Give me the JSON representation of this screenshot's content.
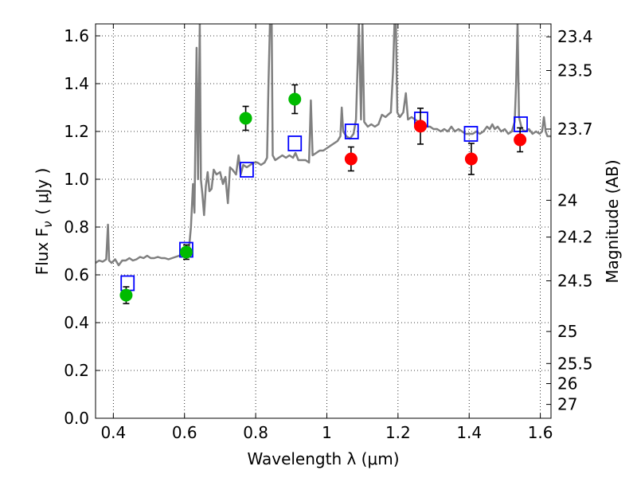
{
  "chart_data": {
    "type": "scatter",
    "xlabel": "Wavelength  λ (μm)",
    "ylabel": "Flux  F",
    "ylabel_subscript": "ν",
    "ylabel_unit": "( μJy )",
    "y2label": "Magnitude (AB)",
    "xlim": [
      0.35,
      1.63
    ],
    "ylim": [
      0.0,
      1.65
    ],
    "grid": true,
    "x_ticks": [
      {
        "value": 0.4,
        "label": "0.4"
      },
      {
        "value": 0.6,
        "label": "0.6"
      },
      {
        "value": 0.8,
        "label": "0.8"
      },
      {
        "value": 1.0,
        "label": "1"
      },
      {
        "value": 1.2,
        "label": "1.2"
      },
      {
        "value": 1.4,
        "label": "1.4"
      },
      {
        "value": 1.6,
        "label": "1.6"
      }
    ],
    "y_ticks": [
      {
        "value": 0.0,
        "label": "0.0"
      },
      {
        "value": 0.2,
        "label": "0.2"
      },
      {
        "value": 0.4,
        "label": "0.4"
      },
      {
        "value": 0.6,
        "label": "0.6"
      },
      {
        "value": 0.8,
        "label": "0.8"
      },
      {
        "value": 1.0,
        "label": "1.0"
      },
      {
        "value": 1.2,
        "label": "1.2"
      },
      {
        "value": 1.4,
        "label": "1.4"
      },
      {
        "value": 1.6,
        "label": "1.6"
      }
    ],
    "y2_ticks": [
      {
        "flux": 1.596,
        "label": "23.4"
      },
      {
        "flux": 1.455,
        "label": "23.5"
      },
      {
        "flux": 1.21,
        "label": "23.7"
      },
      {
        "flux": 0.912,
        "label": "24"
      },
      {
        "flux": 0.758,
        "label": "24.2"
      },
      {
        "flux": 0.575,
        "label": "24.5"
      },
      {
        "flux": 0.363,
        "label": "25"
      },
      {
        "flux": 0.229,
        "label": "25.5"
      },
      {
        "flux": 0.145,
        "label": "26"
      },
      {
        "flux": 0.058,
        "label": "27"
      }
    ],
    "series": [
      {
        "kind": "line",
        "color": "#808080",
        "points": [
          [
            0.35,
            0.65
          ],
          [
            0.36,
            0.66
          ],
          [
            0.37,
            0.655
          ],
          [
            0.375,
            0.66
          ],
          [
            0.38,
            0.665
          ],
          [
            0.385,
            0.81
          ],
          [
            0.388,
            0.66
          ],
          [
            0.395,
            0.65
          ],
          [
            0.405,
            0.665
          ],
          [
            0.415,
            0.64
          ],
          [
            0.425,
            0.66
          ],
          [
            0.435,
            0.66
          ],
          [
            0.445,
            0.67
          ],
          [
            0.455,
            0.66
          ],
          [
            0.465,
            0.665
          ],
          [
            0.475,
            0.675
          ],
          [
            0.485,
            0.67
          ],
          [
            0.495,
            0.68
          ],
          [
            0.505,
            0.67
          ],
          [
            0.515,
            0.67
          ],
          [
            0.525,
            0.675
          ],
          [
            0.535,
            0.67
          ],
          [
            0.545,
            0.67
          ],
          [
            0.555,
            0.665
          ],
          [
            0.565,
            0.67
          ],
          [
            0.575,
            0.675
          ],
          [
            0.585,
            0.68
          ],
          [
            0.595,
            0.69
          ],
          [
            0.605,
            0.69
          ],
          [
            0.612,
            0.7
          ],
          [
            0.618,
            0.8
          ],
          [
            0.624,
            0.98
          ],
          [
            0.628,
            0.86
          ],
          [
            0.634,
            1.55
          ],
          [
            0.638,
            1.0
          ],
          [
            0.643,
            1.65
          ],
          [
            0.646,
            1.0
          ],
          [
            0.65,
            0.94
          ],
          [
            0.655,
            0.85
          ],
          [
            0.66,
            0.97
          ],
          [
            0.665,
            1.03
          ],
          [
            0.67,
            0.95
          ],
          [
            0.676,
            0.96
          ],
          [
            0.682,
            1.04
          ],
          [
            0.69,
            1.02
          ],
          [
            0.7,
            1.03
          ],
          [
            0.708,
            0.98
          ],
          [
            0.715,
            1.01
          ],
          [
            0.722,
            0.9
          ],
          [
            0.728,
            1.05
          ],
          [
            0.735,
            1.04
          ],
          [
            0.745,
            1.02
          ],
          [
            0.752,
            1.1
          ],
          [
            0.758,
            1.02
          ],
          [
            0.765,
            1.06
          ],
          [
            0.775,
            1.05
          ],
          [
            0.785,
            1.06
          ],
          [
            0.795,
            1.07
          ],
          [
            0.805,
            1.07
          ],
          [
            0.815,
            1.06
          ],
          [
            0.825,
            1.07
          ],
          [
            0.832,
            1.09
          ],
          [
            0.836,
            1.4
          ],
          [
            0.84,
            1.65
          ],
          [
            0.845,
            1.65
          ],
          [
            0.848,
            1.1
          ],
          [
            0.855,
            1.08
          ],
          [
            0.865,
            1.09
          ],
          [
            0.875,
            1.1
          ],
          [
            0.885,
            1.09
          ],
          [
            0.895,
            1.1
          ],
          [
            0.905,
            1.09
          ],
          [
            0.912,
            1.11
          ],
          [
            0.92,
            1.08
          ],
          [
            0.93,
            1.08
          ],
          [
            0.94,
            1.08
          ],
          [
            0.95,
            1.07
          ],
          [
            0.955,
            1.33
          ],
          [
            0.96,
            1.1
          ],
          [
            0.97,
            1.11
          ],
          [
            0.98,
            1.12
          ],
          [
            0.99,
            1.12
          ],
          [
            1.0,
            1.13
          ],
          [
            1.01,
            1.14
          ],
          [
            1.02,
            1.15
          ],
          [
            1.03,
            1.16
          ],
          [
            1.038,
            1.18
          ],
          [
            1.042,
            1.3
          ],
          [
            1.046,
            1.2
          ],
          [
            1.055,
            1.18
          ],
          [
            1.065,
            1.17
          ],
          [
            1.075,
            1.19
          ],
          [
            1.082,
            1.25
          ],
          [
            1.09,
            1.65
          ],
          [
            1.096,
            1.25
          ],
          [
            1.1,
            1.65
          ],
          [
            1.105,
            1.24
          ],
          [
            1.115,
            1.22
          ],
          [
            1.125,
            1.23
          ],
          [
            1.135,
            1.22
          ],
          [
            1.145,
            1.23
          ],
          [
            1.155,
            1.27
          ],
          [
            1.165,
            1.26
          ],
          [
            1.172,
            1.27
          ],
          [
            1.18,
            1.28
          ],
          [
            1.186,
            1.45
          ],
          [
            1.19,
            1.65
          ],
          [
            1.194,
            1.65
          ],
          [
            1.198,
            1.28
          ],
          [
            1.205,
            1.26
          ],
          [
            1.215,
            1.28
          ],
          [
            1.222,
            1.36
          ],
          [
            1.228,
            1.25
          ],
          [
            1.238,
            1.26
          ],
          [
            1.248,
            1.25
          ],
          [
            1.258,
            1.24
          ],
          [
            1.268,
            1.23
          ],
          [
            1.278,
            1.22
          ],
          [
            1.29,
            1.22
          ],
          [
            1.3,
            1.21
          ],
          [
            1.31,
            1.21
          ],
          [
            1.32,
            1.2
          ],
          [
            1.33,
            1.21
          ],
          [
            1.34,
            1.2
          ],
          [
            1.35,
            1.22
          ],
          [
            1.36,
            1.2
          ],
          [
            1.37,
            1.21
          ],
          [
            1.38,
            1.2
          ],
          [
            1.39,
            1.19
          ],
          [
            1.4,
            1.19
          ],
          [
            1.41,
            1.19
          ],
          [
            1.42,
            1.2
          ],
          [
            1.43,
            1.19
          ],
          [
            1.44,
            1.2
          ],
          [
            1.45,
            1.22
          ],
          [
            1.458,
            1.21
          ],
          [
            1.465,
            1.23
          ],
          [
            1.472,
            1.21
          ],
          [
            1.48,
            1.22
          ],
          [
            1.49,
            1.2
          ],
          [
            1.5,
            1.21
          ],
          [
            1.51,
            1.19
          ],
          [
            1.52,
            1.2
          ],
          [
            1.528,
            1.24
          ],
          [
            1.532,
            1.4
          ],
          [
            1.536,
            1.65
          ],
          [
            1.54,
            1.26
          ],
          [
            1.548,
            1.21
          ],
          [
            1.558,
            1.2
          ],
          [
            1.568,
            1.21
          ],
          [
            1.578,
            1.19
          ],
          [
            1.588,
            1.2
          ],
          [
            1.598,
            1.19
          ],
          [
            1.605,
            1.2
          ],
          [
            1.61,
            1.26
          ],
          [
            1.615,
            1.2
          ],
          [
            1.62,
            1.18
          ],
          [
            1.63,
            1.18
          ]
        ]
      },
      {
        "kind": "hollow-square",
        "color": "#0000ff",
        "x": [
          0.44,
          0.605,
          0.775,
          0.91,
          1.07,
          1.265,
          1.405,
          1.545
        ],
        "y": [
          0.565,
          0.705,
          1.04,
          1.15,
          1.2,
          1.25,
          1.19,
          1.23
        ]
      },
      {
        "kind": "dot-errorbar",
        "color": "#00bb00",
        "x": [
          0.436,
          0.605,
          0.772,
          0.91
        ],
        "y": [
          0.515,
          0.695,
          1.255,
          1.335
        ],
        "err": [
          0.035,
          0.03,
          0.05,
          0.06
        ]
      },
      {
        "kind": "dot-errorbar",
        "color": "#ff0000",
        "x": [
          1.068,
          1.263,
          1.406,
          1.543
        ],
        "y": [
          1.085,
          1.222,
          1.085,
          1.165
        ],
        "err": [
          0.05,
          0.075,
          0.065,
          0.05
        ]
      }
    ]
  }
}
